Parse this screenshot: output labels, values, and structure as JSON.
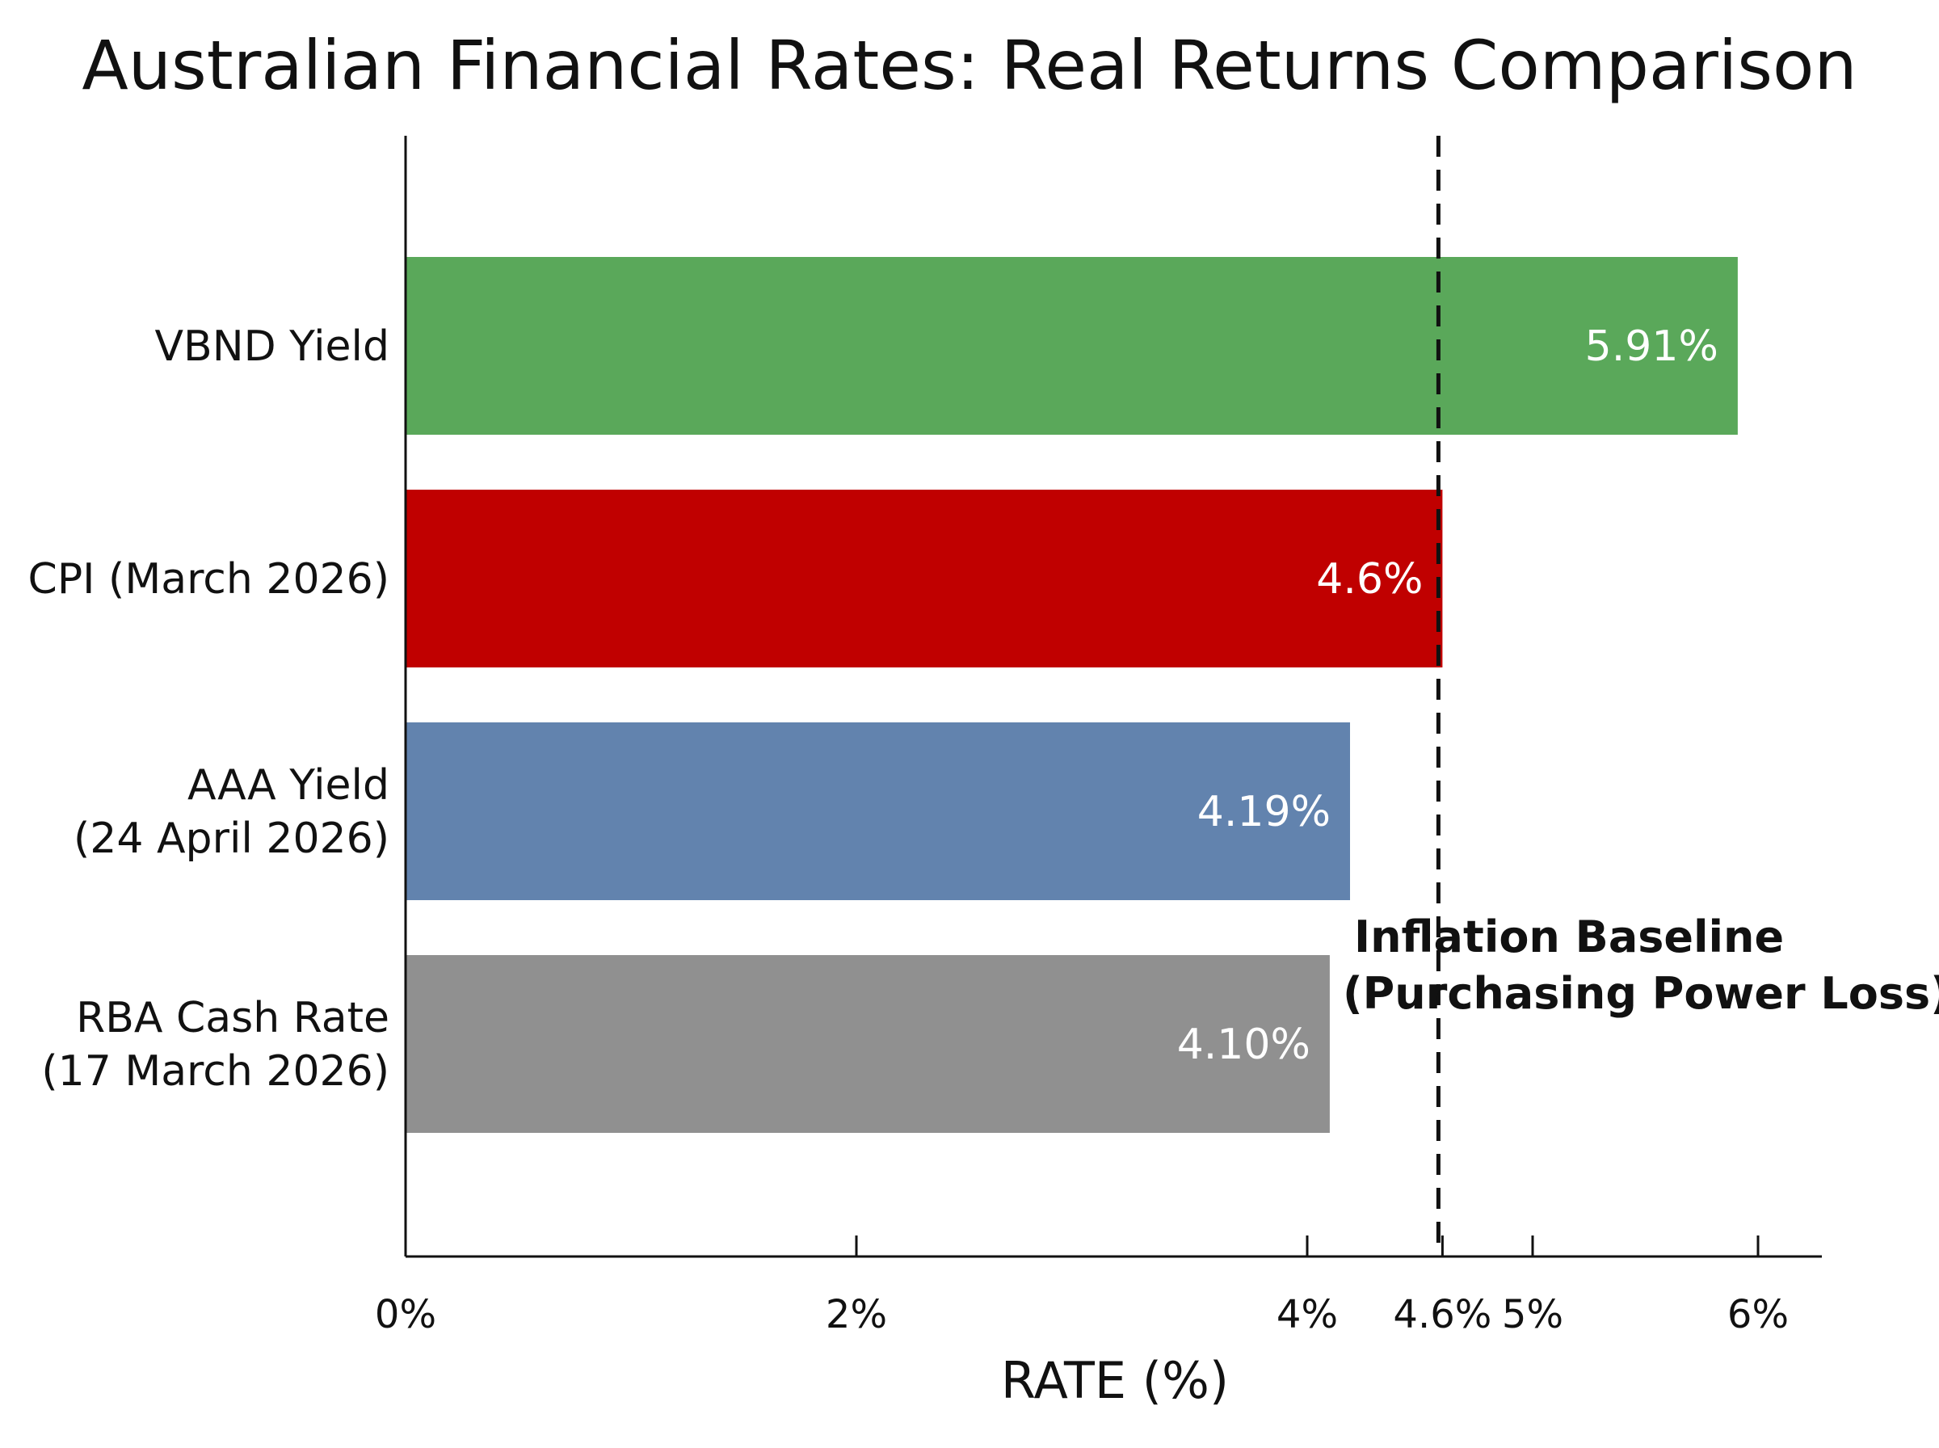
{
  "chart_data": {
    "type": "bar",
    "orientation": "horizontal",
    "title": "Australian Financial Rates: Real Returns Comparison",
    "xlabel": "RATE (%)",
    "ylabel": "",
    "xlim": [
      0,
      6.3
    ],
    "grid": false,
    "legend": "none",
    "categories": [
      [
        "VBND Yield"
      ],
      [
        "CPI (March 2026)"
      ],
      [
        "AAA Yield",
        "(24 April 2026)"
      ],
      [
        "RBA Cash Rate",
        "(17 March 2026)"
      ]
    ],
    "values": [
      5.91,
      4.6,
      4.19,
      4.1
    ],
    "value_labels": [
      "5.91%",
      "4.6%",
      "4.19%",
      "4.10%"
    ],
    "colors": [
      "#5aa85a",
      "#c00000",
      "#6283ae",
      "#909090"
    ],
    "x_ticks": [
      {
        "value": 0,
        "label": "0%"
      },
      {
        "value": 2,
        "label": "2%"
      },
      {
        "value": 4,
        "label": "4%"
      },
      {
        "value": 4.6,
        "label": "4.6%"
      },
      {
        "value": 5,
        "label": "5%"
      },
      {
        "value": 6,
        "label": "6%"
      }
    ],
    "reference_line": {
      "value": 4.6,
      "style": "dashed",
      "label": [
        "Inflation Baseline",
        "(Purchasing Power Loss)"
      ]
    }
  }
}
